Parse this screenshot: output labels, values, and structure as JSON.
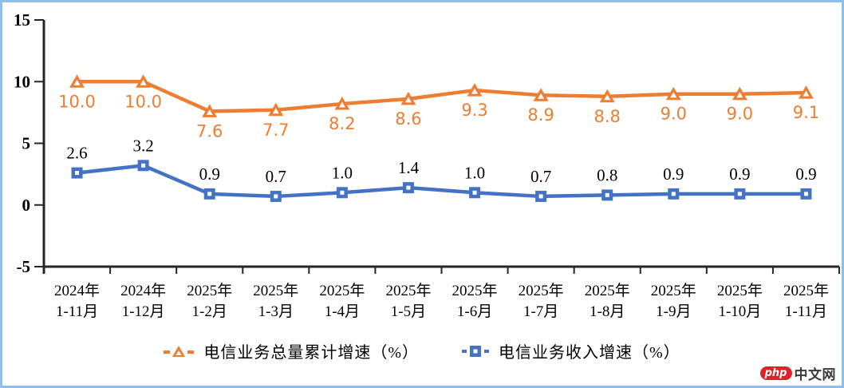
{
  "chart_data": {
    "type": "line",
    "categories": [
      {
        "line1": "2024年",
        "line2": "1-11月"
      },
      {
        "line1": "2024年",
        "line2": "1-12月"
      },
      {
        "line1": "2025年",
        "line2": "1-2月"
      },
      {
        "line1": "2025年",
        "line2": "1-3月"
      },
      {
        "line1": "2025年",
        "line2": "1-4月"
      },
      {
        "line1": "2025年",
        "line2": "1-5月"
      },
      {
        "line1": "2025年",
        "line2": "1-6月"
      },
      {
        "line1": "2025年",
        "line2": "1-7月"
      },
      {
        "line1": "2025年",
        "line2": "1-8月"
      },
      {
        "line1": "2025年",
        "line2": "1-9月"
      },
      {
        "line1": "2025年",
        "line2": "1-10月"
      },
      {
        "line1": "2025年",
        "line2": "1-11月"
      }
    ],
    "series": [
      {
        "name": "电信业务总量累计增速（%）",
        "marker": "triangle",
        "color": "#ED7D31",
        "label_color": "#ED7D31",
        "label_position": "below",
        "values": [
          10.0,
          10.0,
          7.6,
          7.7,
          8.2,
          8.6,
          9.3,
          8.9,
          8.8,
          9.0,
          9.0,
          9.1
        ]
      },
      {
        "name": "电信业务收入增速（%）",
        "marker": "square",
        "color": "#4472C4",
        "label_color": "#000000",
        "label_position": "above",
        "values": [
          2.6,
          3.2,
          0.9,
          0.7,
          1.0,
          1.4,
          1.0,
          0.7,
          0.8,
          0.9,
          0.9,
          0.9
        ]
      }
    ],
    "ylim": [
      -5,
      15
    ],
    "yticks": [
      15,
      10,
      5,
      0,
      -5
    ],
    "grid": false,
    "legend_position": "bottom",
    "value_label_decimals": 1,
    "title": "",
    "xlabel": "",
    "ylabel": ""
  },
  "watermark": {
    "badge": "php",
    "site": "中文网",
    "badge_color": "#E02128"
  },
  "frame": {
    "border_color": "#8EBFEA",
    "background": "#FFFFFF",
    "axis_color": "#262626"
  }
}
